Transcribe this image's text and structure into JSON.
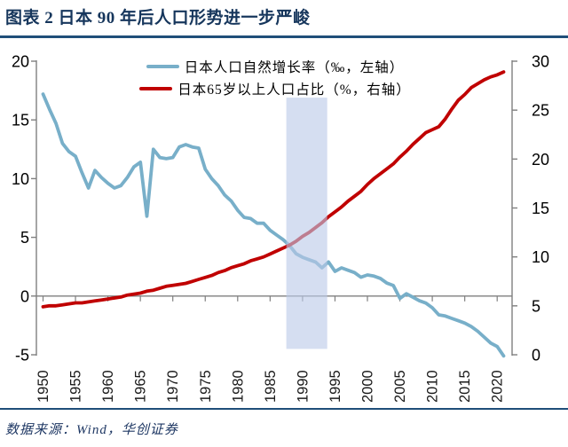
{
  "header": {
    "title": "图表 2 日本 90 年后人口形势进一步严峻"
  },
  "footer": {
    "source": "数据来源：Wind，华创证券"
  },
  "colors": {
    "title_navy": "#16365C",
    "rule_blue": "#1F4E79",
    "axis_gray": "#7F7F7F",
    "tick_text": "#000000",
    "blue_series": "#78AFC9",
    "red_series": "#C00000",
    "band_fill": "#BCCAE9",
    "source_text": "#1F3864"
  },
  "legend": {
    "items": [
      {
        "label": "日本人口自然增长率（‰，左轴）",
        "color": "#78AFC9"
      },
      {
        "label": "日本65岁以上人口占比（%，右轴）",
        "color": "#C00000"
      }
    ]
  },
  "chart_data": {
    "type": "line",
    "title": "日本90年后人口形势进一步严峻",
    "x_start": 1950,
    "x_end": 2021,
    "x_tick_years": [
      1950,
      1955,
      1960,
      1965,
      1970,
      1975,
      1980,
      1985,
      1990,
      1995,
      2000,
      2005,
      2010,
      2015,
      2020
    ],
    "left_axis": {
      "label": "‰（左轴）",
      "ticks": [
        20,
        15,
        10,
        5,
        0,
        -5
      ],
      "range": [
        -5,
        20
      ]
    },
    "right_axis": {
      "label": "%（右轴）",
      "ticks": [
        30,
        25,
        20,
        15,
        10,
        5,
        0
      ],
      "range": [
        0,
        30
      ]
    },
    "grid": "zero-line-only",
    "legend_position": "top-center",
    "series": [
      {
        "name": "日本人口自然增长率（‰，左轴）",
        "axis": "left",
        "color": "#78AFC9",
        "values": [
          17.2,
          15.9,
          14.7,
          13.0,
          12.3,
          11.9,
          10.5,
          9.2,
          10.7,
          10.1,
          9.6,
          9.2,
          9.4,
          10.1,
          11.0,
          11.4,
          6.8,
          12.5,
          11.8,
          11.7,
          11.8,
          12.7,
          12.9,
          12.7,
          12.6,
          10.8,
          10.0,
          9.4,
          8.6,
          8.1,
          7.3,
          6.7,
          6.6,
          6.2,
          6.2,
          5.6,
          5.2,
          4.8,
          4.3,
          3.6,
          3.3,
          3.1,
          2.9,
          2.4,
          2.9,
          2.1,
          2.4,
          2.2,
          2.0,
          1.6,
          1.8,
          1.7,
          1.5,
          1.1,
          0.9,
          -0.2,
          0.2,
          -0.1,
          -0.4,
          -0.6,
          -1.0,
          -1.6,
          -1.7,
          -1.9,
          -2.1,
          -2.3,
          -2.6,
          -3.0,
          -3.5,
          -4.0,
          -4.3,
          -5.1
        ]
      },
      {
        "name": "日本65岁以上人口占比（%，右轴）",
        "axis": "right",
        "color": "#C00000",
        "values": [
          4.9,
          5.0,
          5.0,
          5.1,
          5.2,
          5.3,
          5.3,
          5.4,
          5.5,
          5.6,
          5.7,
          5.8,
          5.9,
          6.1,
          6.2,
          6.3,
          6.5,
          6.6,
          6.8,
          7.0,
          7.1,
          7.2,
          7.3,
          7.5,
          7.7,
          7.9,
          8.1,
          8.4,
          8.6,
          8.9,
          9.1,
          9.3,
          9.6,
          9.8,
          10.0,
          10.3,
          10.6,
          10.9,
          11.2,
          11.6,
          12.1,
          12.5,
          13.0,
          13.5,
          14.1,
          14.6,
          15.1,
          15.7,
          16.2,
          16.7,
          17.4,
          18.0,
          18.5,
          19.0,
          19.5,
          20.2,
          20.8,
          21.5,
          22.1,
          22.7,
          23.0,
          23.3,
          24.1,
          25.1,
          26.0,
          26.6,
          27.3,
          27.7,
          28.1,
          28.4,
          28.6,
          28.9
        ]
      }
    ],
    "highlight_band": {
      "from_year": 1987.5,
      "to_year": 1993.8,
      "top_value_left_axis": 16.9,
      "bottom_value_left_axis": -4.5,
      "color": "#BCCAE9",
      "opacity": 0.62
    }
  }
}
